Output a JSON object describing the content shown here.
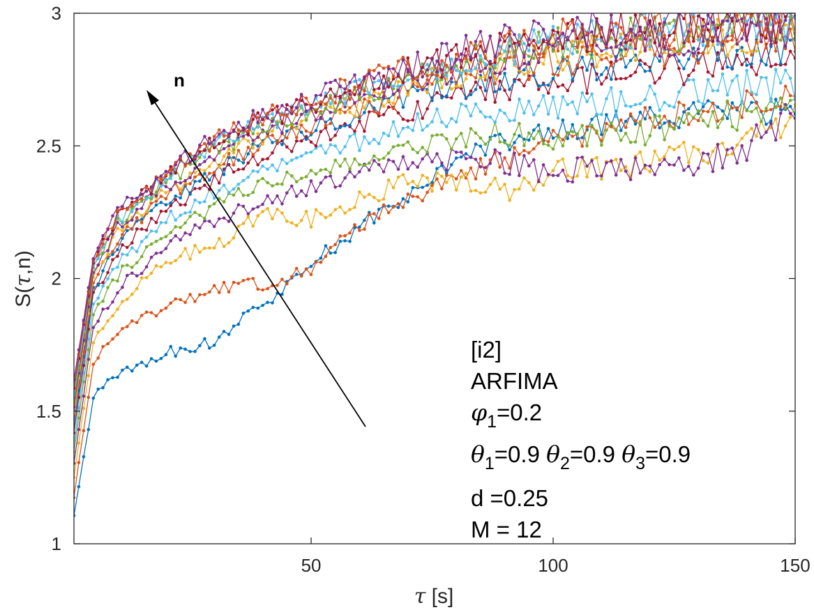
{
  "chart_data": {
    "type": "line",
    "xlabel_symbol": "τ",
    "xlabel_unit": "[s]",
    "ylabel_prefix": "S(",
    "ylabel_symbol": "τ",
    "ylabel_suffix": ",n)",
    "xlim": [
      1,
      150
    ],
    "ylim": [
      1,
      3
    ],
    "xticks": [
      50,
      100,
      150
    ],
    "yticks": [
      1,
      1.5,
      2,
      2.5,
      3
    ],
    "grid": false,
    "arrow_label": "n",
    "annotation": {
      "line1": "[i2]",
      "line2": "ARFIMA",
      "phi_sym": "φ",
      "phi_sub": "1",
      "phi_val": "=0.2",
      "theta_sym": "θ",
      "theta1_sub": "1",
      "theta1_val": "=0.9 ",
      "theta2_sub": "2",
      "theta2_val": "=0.9 ",
      "theta3_sub": "3",
      "theta3_val": "=0.9",
      "line5": "d =0.25",
      "line6": "M = 12"
    },
    "series_colors": [
      "#0072BD",
      "#D95319",
      "#EDB120",
      "#7E2F8E",
      "#77AC30",
      "#4DBEEE",
      "#A2142F",
      "#0072BD",
      "#D95319",
      "#EDB120",
      "#7E2F8E",
      "#77AC30",
      "#4DBEEE",
      "#A2142F",
      "#D95319",
      "#7E2F8E"
    ],
    "series": [
      {
        "values": [
          [
            1,
            1.1
          ],
          [
            5,
            1.55
          ],
          [
            10,
            1.64
          ],
          [
            20,
            1.72
          ],
          [
            30,
            1.76
          ],
          [
            40,
            1.9
          ],
          [
            50,
            2.05
          ],
          [
            60,
            2.2
          ],
          [
            70,
            2.32
          ],
          [
            80,
            2.44
          ],
          [
            90,
            2.52
          ],
          [
            100,
            2.56
          ],
          [
            110,
            2.58
          ],
          [
            120,
            2.6
          ],
          [
            130,
            2.62
          ],
          [
            140,
            2.63
          ],
          [
            150,
            2.64
          ]
        ]
      },
      {
        "values": [
          [
            1,
            1.18
          ],
          [
            5,
            1.68
          ],
          [
            10,
            1.8
          ],
          [
            20,
            1.9
          ],
          [
            30,
            1.96
          ],
          [
            40,
            1.98
          ],
          [
            50,
            2.03
          ],
          [
            60,
            2.2
          ],
          [
            70,
            2.3
          ],
          [
            80,
            2.38
          ],
          [
            90,
            2.45
          ],
          [
            100,
            2.52
          ],
          [
            110,
            2.56
          ],
          [
            120,
            2.6
          ],
          [
            130,
            2.63
          ],
          [
            140,
            2.66
          ],
          [
            150,
            2.68
          ]
        ]
      },
      {
        "values": [
          [
            1,
            1.25
          ],
          [
            5,
            1.76
          ],
          [
            10,
            1.9
          ],
          [
            20,
            2.07
          ],
          [
            30,
            2.12
          ],
          [
            40,
            2.24
          ],
          [
            50,
            2.22
          ],
          [
            60,
            2.3
          ],
          [
            70,
            2.36
          ],
          [
            80,
            2.37
          ],
          [
            90,
            2.33
          ],
          [
            100,
            2.4
          ],
          [
            110,
            2.42
          ],
          [
            120,
            2.44
          ],
          [
            130,
            2.47
          ],
          [
            140,
            2.55
          ],
          [
            150,
            2.6
          ]
        ]
      },
      {
        "values": [
          [
            1,
            1.3
          ],
          [
            5,
            1.82
          ],
          [
            10,
            1.96
          ],
          [
            20,
            2.12
          ],
          [
            30,
            2.22
          ],
          [
            40,
            2.29
          ],
          [
            50,
            2.34
          ],
          [
            60,
            2.4
          ],
          [
            70,
            2.44
          ],
          [
            80,
            2.45
          ],
          [
            90,
            2.44
          ],
          [
            100,
            2.4
          ],
          [
            110,
            2.42
          ],
          [
            120,
            2.4
          ],
          [
            130,
            2.44
          ],
          [
            140,
            2.5
          ],
          [
            150,
            2.62
          ]
        ]
      },
      {
        "values": [
          [
            1,
            1.34
          ],
          [
            5,
            1.87
          ],
          [
            10,
            2.01
          ],
          [
            20,
            2.17
          ],
          [
            30,
            2.27
          ],
          [
            40,
            2.35
          ],
          [
            50,
            2.39
          ],
          [
            60,
            2.44
          ],
          [
            70,
            2.5
          ],
          [
            80,
            2.52
          ],
          [
            90,
            2.55
          ],
          [
            100,
            2.52
          ],
          [
            110,
            2.54
          ],
          [
            120,
            2.56
          ],
          [
            130,
            2.6
          ],
          [
            140,
            2.62
          ],
          [
            150,
            2.66
          ]
        ]
      },
      {
        "values": [
          [
            1,
            1.38
          ],
          [
            5,
            1.91
          ],
          [
            10,
            2.06
          ],
          [
            20,
            2.22
          ],
          [
            30,
            2.32
          ],
          [
            40,
            2.42
          ],
          [
            50,
            2.47
          ],
          [
            60,
            2.52
          ],
          [
            70,
            2.58
          ],
          [
            80,
            2.62
          ],
          [
            90,
            2.64
          ],
          [
            100,
            2.65
          ],
          [
            110,
            2.66
          ],
          [
            120,
            2.68
          ],
          [
            130,
            2.7
          ],
          [
            140,
            2.72
          ],
          [
            150,
            2.74
          ]
        ]
      },
      {
        "values": [
          [
            1,
            1.42
          ],
          [
            5,
            1.94
          ],
          [
            10,
            2.1
          ],
          [
            20,
            2.26
          ],
          [
            30,
            2.37
          ],
          [
            40,
            2.47
          ],
          [
            50,
            2.52
          ],
          [
            60,
            2.58
          ],
          [
            70,
            2.63
          ],
          [
            80,
            2.68
          ],
          [
            90,
            2.72
          ],
          [
            100,
            2.74
          ],
          [
            110,
            2.76
          ],
          [
            120,
            2.78
          ],
          [
            130,
            2.8
          ],
          [
            140,
            2.82
          ],
          [
            150,
            2.84
          ]
        ]
      },
      {
        "values": [
          [
            1,
            1.45
          ],
          [
            5,
            1.96
          ],
          [
            10,
            2.13
          ],
          [
            20,
            2.29
          ],
          [
            30,
            2.4
          ],
          [
            40,
            2.5
          ],
          [
            50,
            2.56
          ],
          [
            60,
            2.62
          ],
          [
            70,
            2.68
          ],
          [
            80,
            2.72
          ],
          [
            90,
            2.76
          ],
          [
            100,
            2.78
          ],
          [
            110,
            2.8
          ],
          [
            120,
            2.82
          ],
          [
            130,
            2.84
          ],
          [
            140,
            2.86
          ],
          [
            150,
            2.88
          ]
        ]
      },
      {
        "values": [
          [
            1,
            1.48
          ],
          [
            5,
            1.98
          ],
          [
            10,
            2.15
          ],
          [
            20,
            2.31
          ],
          [
            30,
            2.42
          ],
          [
            40,
            2.52
          ],
          [
            50,
            2.58
          ],
          [
            60,
            2.64
          ],
          [
            70,
            2.7
          ],
          [
            80,
            2.75
          ],
          [
            90,
            2.79
          ],
          [
            100,
            2.82
          ],
          [
            110,
            2.84
          ],
          [
            120,
            2.86
          ],
          [
            130,
            2.88
          ],
          [
            140,
            2.9
          ],
          [
            150,
            2.92
          ]
        ]
      },
      {
        "values": [
          [
            1,
            1.5
          ],
          [
            5,
            2.0
          ],
          [
            10,
            2.17
          ],
          [
            20,
            2.33
          ],
          [
            30,
            2.44
          ],
          [
            40,
            2.54
          ],
          [
            50,
            2.6
          ],
          [
            60,
            2.66
          ],
          [
            70,
            2.72
          ],
          [
            80,
            2.77
          ],
          [
            90,
            2.81
          ],
          [
            100,
            2.84
          ],
          [
            110,
            2.86
          ],
          [
            120,
            2.88
          ],
          [
            130,
            2.9
          ],
          [
            140,
            2.92
          ],
          [
            150,
            2.94
          ]
        ]
      },
      {
        "values": [
          [
            1,
            1.52
          ],
          [
            5,
            2.02
          ],
          [
            10,
            2.19
          ],
          [
            20,
            2.35
          ],
          [
            30,
            2.46
          ],
          [
            40,
            2.55
          ],
          [
            50,
            2.62
          ],
          [
            60,
            2.68
          ],
          [
            70,
            2.74
          ],
          [
            80,
            2.79
          ],
          [
            90,
            2.83
          ],
          [
            100,
            2.86
          ],
          [
            110,
            2.88
          ],
          [
            120,
            2.9
          ],
          [
            130,
            2.92
          ],
          [
            140,
            2.94
          ],
          [
            150,
            2.95
          ]
        ]
      },
      {
        "values": [
          [
            1,
            1.54
          ],
          [
            5,
            2.04
          ],
          [
            10,
            2.21
          ],
          [
            20,
            2.37
          ],
          [
            30,
            2.48
          ],
          [
            40,
            2.57
          ],
          [
            50,
            2.64
          ],
          [
            60,
            2.7
          ],
          [
            70,
            2.76
          ],
          [
            80,
            2.81
          ],
          [
            90,
            2.85
          ],
          [
            100,
            2.88
          ],
          [
            110,
            2.9
          ],
          [
            120,
            2.92
          ],
          [
            130,
            2.93
          ],
          [
            140,
            2.95
          ],
          [
            150,
            2.96
          ]
        ]
      },
      {
        "values": [
          [
            1,
            1.56
          ],
          [
            5,
            2.05
          ],
          [
            10,
            2.22
          ],
          [
            20,
            2.38
          ],
          [
            30,
            2.5
          ],
          [
            40,
            2.58
          ],
          [
            50,
            2.65
          ],
          [
            60,
            2.71
          ],
          [
            70,
            2.77
          ],
          [
            80,
            2.82
          ],
          [
            90,
            2.86
          ],
          [
            100,
            2.89
          ],
          [
            110,
            2.91
          ],
          [
            120,
            2.93
          ],
          [
            130,
            2.94
          ],
          [
            140,
            2.96
          ],
          [
            150,
            2.97
          ]
        ]
      },
      {
        "values": [
          [
            1,
            1.58
          ],
          [
            5,
            2.06
          ],
          [
            10,
            2.23
          ],
          [
            20,
            2.39
          ],
          [
            30,
            2.51
          ],
          [
            40,
            2.6
          ],
          [
            50,
            2.66
          ],
          [
            60,
            2.72
          ],
          [
            70,
            2.78
          ],
          [
            80,
            2.83
          ],
          [
            90,
            2.87
          ],
          [
            100,
            2.9
          ],
          [
            110,
            2.92
          ],
          [
            120,
            2.94
          ],
          [
            130,
            2.95
          ],
          [
            140,
            2.97
          ],
          [
            150,
            2.98
          ]
        ]
      },
      {
        "values": [
          [
            1,
            1.6
          ],
          [
            5,
            2.07
          ],
          [
            10,
            2.24
          ],
          [
            20,
            2.4
          ],
          [
            30,
            2.52
          ],
          [
            40,
            2.61
          ],
          [
            50,
            2.67
          ],
          [
            60,
            2.73
          ],
          [
            70,
            2.79
          ],
          [
            80,
            2.84
          ],
          [
            90,
            2.88
          ],
          [
            100,
            2.91
          ],
          [
            110,
            2.93
          ],
          [
            120,
            2.95
          ],
          [
            130,
            2.96
          ],
          [
            140,
            2.97
          ],
          [
            150,
            2.98
          ]
        ]
      },
      {
        "values": [
          [
            1,
            1.62
          ],
          [
            5,
            2.08
          ],
          [
            10,
            2.25
          ],
          [
            20,
            2.41
          ],
          [
            30,
            2.53
          ],
          [
            40,
            2.62
          ],
          [
            50,
            2.68
          ],
          [
            60,
            2.74
          ],
          [
            70,
            2.8
          ],
          [
            80,
            2.85
          ],
          [
            90,
            2.89
          ],
          [
            100,
            2.92
          ],
          [
            110,
            2.94
          ],
          [
            120,
            2.96
          ],
          [
            130,
            2.97
          ],
          [
            140,
            2.98
          ],
          [
            150,
            2.99
          ]
        ]
      }
    ]
  }
}
